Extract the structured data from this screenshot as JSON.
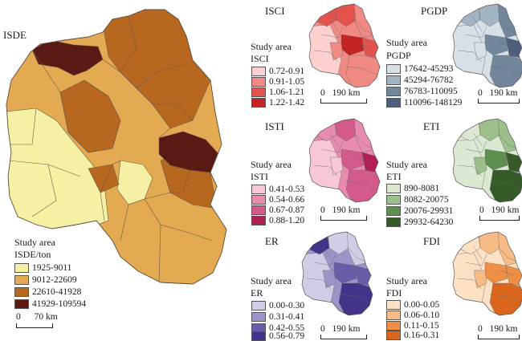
{
  "main_map": {
    "title": "ISDE",
    "legend": {
      "heading": "Study area",
      "subtitle": "ISDE/ton",
      "classes": [
        {
          "label": "1925-9011",
          "color": "#f5f0a3"
        },
        {
          "label": "9012-22609",
          "color": "#e3aa52"
        },
        {
          "label": "22610-41928",
          "color": "#b8671f"
        },
        {
          "label": "41929-109594",
          "color": "#5a1a14"
        }
      ]
    },
    "scalebar": {
      "zero": "0",
      "end": "70 km"
    }
  },
  "panels": [
    {
      "id": "isci",
      "title": "ISCI",
      "legend": {
        "heading": "Study area",
        "subtitle": "ISCI",
        "classes": [
          {
            "label": "0.72-0.91",
            "color": "#fbd0cf"
          },
          {
            "label": "0.91-1.05",
            "color": "#f18a84"
          },
          {
            "label": "1.06-1.21",
            "color": "#e3524b"
          },
          {
            "label": "1.22-1.42",
            "color": "#c42424"
          }
        ]
      },
      "scalebar": {
        "zero": "0",
        "end": "190 km"
      }
    },
    {
      "id": "pgdp",
      "title": "PGDP",
      "legend": {
        "heading": "Study area",
        "subtitle": "PGDP",
        "classes": [
          {
            "label": "17642-45293",
            "color": "#d6e0e6"
          },
          {
            "label": "45294-76782",
            "color": "#a2b3c2"
          },
          {
            "label": "76783-110095",
            "color": "#72879c"
          },
          {
            "label": "110096-148129",
            "color": "#4d5f7c"
          }
        ]
      },
      "scalebar": {
        "zero": "0",
        "end": "190 km"
      }
    },
    {
      "id": "isti",
      "title": "ISTI",
      "legend": {
        "heading": "Study area",
        "subtitle": "ISTI",
        "classes": [
          {
            "label": "0.41-0.53",
            "color": "#f8c7d6"
          },
          {
            "label": "0.54-0.66",
            "color": "#e88bb0"
          },
          {
            "label": "0.67-0.87",
            "color": "#d45a8c"
          },
          {
            "label": "0.88-1.20",
            "color": "#b02055"
          }
        ]
      },
      "scalebar": {
        "zero": "0",
        "end": "190 km"
      }
    },
    {
      "id": "eti",
      "title": "ETI",
      "legend": {
        "heading": "Study area",
        "subtitle": "ETI",
        "classes": [
          {
            "label": "890-8081",
            "color": "#dbe9d3"
          },
          {
            "label": "8082-20075",
            "color": "#9cc08c"
          },
          {
            "label": "20076-29931",
            "color": "#5f8f4e"
          },
          {
            "label": "29932-64230",
            "color": "#355c28"
          }
        ]
      },
      "scalebar": {
        "zero": "0",
        "end": "190 km"
      }
    },
    {
      "id": "er",
      "title": "ER",
      "legend": {
        "heading": "Study area",
        "subtitle": "ER",
        "classes": [
          {
            "label": "0.00-0.30",
            "color": "#d2cde6"
          },
          {
            "label": "0.31-0.41",
            "color": "#9e93c8"
          },
          {
            "label": "0.42-0.55",
            "color": "#6b5aa8"
          },
          {
            "label": "0.56-0.79",
            "color": "#45338a"
          }
        ]
      },
      "scalebar": {
        "zero": "0",
        "end": "190 km"
      }
    },
    {
      "id": "fdi",
      "title": "FDI",
      "legend": {
        "heading": "Study area",
        "subtitle": "FDI",
        "classes": [
          {
            "label": "0.00-0.05",
            "color": "#fde1c4"
          },
          {
            "label": "0.06-0.10",
            "color": "#f7bb85"
          },
          {
            "label": "0.11-0.15",
            "color": "#ef8e45"
          },
          {
            "label": "0.16-0.31",
            "color": "#d9661c"
          }
        ]
      },
      "scalebar": {
        "zero": "0",
        "end": "190 km"
      }
    }
  ]
}
